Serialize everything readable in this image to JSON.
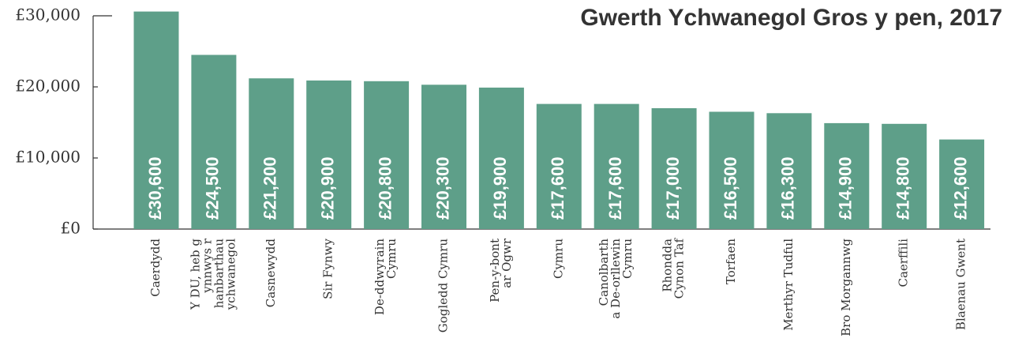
{
  "chart_data": {
    "type": "bar",
    "title": "Gwerth Ychwanegol Gros y pen, 2017",
    "categories": [
      "Caerdydd",
      "Y DU, heb g\nynnwys r\nhanbarthau\nychwanegol",
      "Casnewydd",
      "Sir Fynwy",
      "De-ddwyrain\nCymru",
      "Gogledd Cymru",
      "Pen-y-bont\nar Ogwr",
      "Cymru",
      "Canolbarth\na De-orllewin\nCymru",
      "Rhondda\nCynon Taf",
      "Torfaen",
      "Merthyr Tudful",
      "Bro Morgannwg",
      "Caerffili",
      "Blaenau Gwent"
    ],
    "values": [
      30600,
      24500,
      21200,
      20900,
      20800,
      20300,
      19900,
      17600,
      17600,
      17000,
      16500,
      16300,
      14900,
      14800,
      12600
    ],
    "value_labels": [
      "£30,600",
      "£24,500",
      "£21,200",
      "£20,900",
      "£20,800",
      "£20,300",
      "£19,900",
      "£17,600",
      "£17,600",
      "£17,000",
      "£16,500",
      "£16,300",
      "£14,900",
      "£14,800",
      "£12,600"
    ],
    "color": "#5e9f89",
    "ylim": [
      0,
      30000
    ],
    "yticks": [
      {
        "value": 0,
        "label": "£0"
      },
      {
        "value": 10000,
        "label": "£10,000"
      },
      {
        "value": 20000,
        "label": "£20,000"
      },
      {
        "value": 30000,
        "label": "£30,000"
      }
    ]
  }
}
